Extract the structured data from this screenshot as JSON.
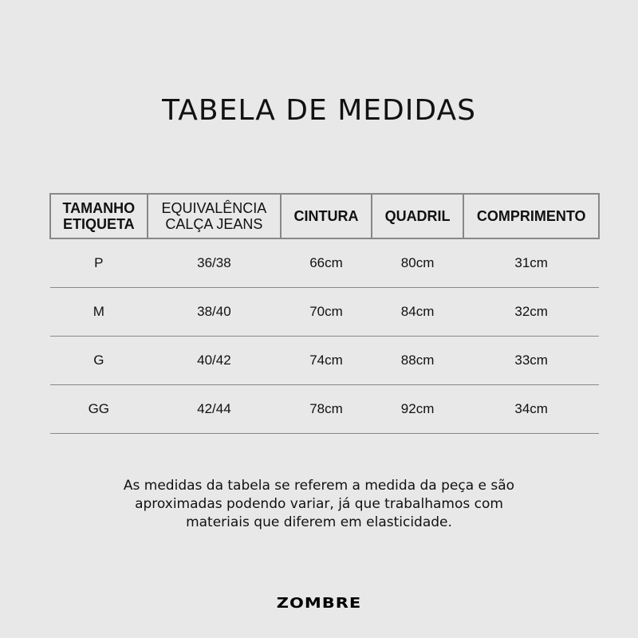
{
  "title": "TABELA DE MEDIDAS",
  "table": {
    "headers": [
      [
        "TAMANHO",
        "ETIQUETA"
      ],
      [
        "EQUIVALÊNCIA",
        "CALÇA JEANS"
      ],
      [
        "CINTURA"
      ],
      [
        "QUADRIL"
      ],
      [
        "COMPRIMENTO"
      ]
    ],
    "rows": [
      [
        "P",
        "36/38",
        "66cm",
        "80cm",
        "31cm"
      ],
      [
        "M",
        "38/40",
        "70cm",
        "84cm",
        "32cm"
      ],
      [
        "G",
        "40/42",
        "74cm",
        "88cm",
        "33cm"
      ],
      [
        "GG",
        "42/44",
        "78cm",
        "92cm",
        "34cm"
      ]
    ]
  },
  "note": [
    "As medidas da tabela se referem a medida da peça e são",
    "aproximadas podendo variar, já que trabalhamos com",
    "materiais que diferem em elasticidade."
  ],
  "logo": "ZOMBRE"
}
